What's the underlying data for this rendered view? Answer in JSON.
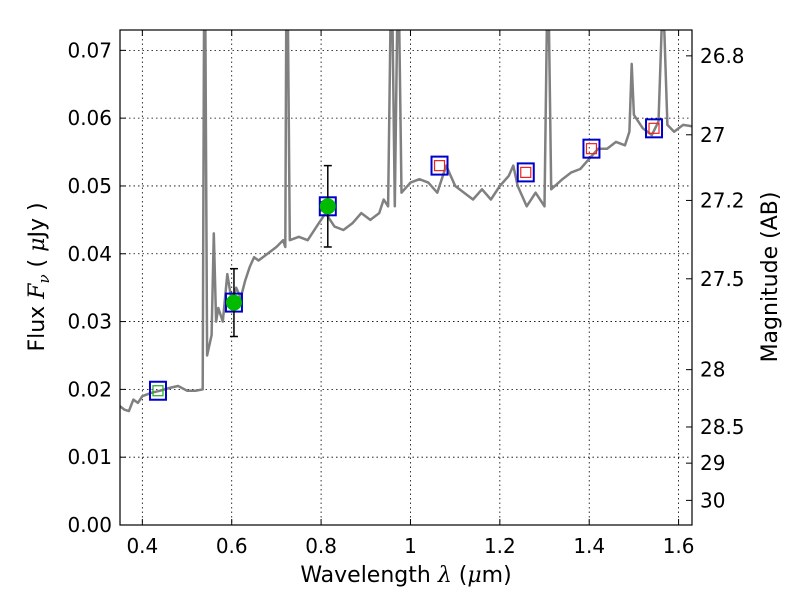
{
  "chart_data": {
    "type": "scatter",
    "title": "",
    "xlabel": {
      "prefix": "Wavelength ",
      "symbol": "λ",
      "suffix_open": " (",
      "unit_mu": "μ",
      "unit_rest": "m)"
    },
    "ylabel": {
      "prefix": "Flux ",
      "symbol": "F",
      "sub": "ν",
      "suffix_open": " ( ",
      "unit_mu": "μ",
      "unit_rest": "Jy )"
    },
    "y2label": "Magnitude (AB)",
    "xlim": [
      0.35,
      1.63
    ],
    "ylim": [
      0.0,
      0.073
    ],
    "grid": true,
    "x_ticks": [
      {
        "v": 0.4,
        "label": "0.4"
      },
      {
        "v": 0.6,
        "label": "0.6"
      },
      {
        "v": 0.8,
        "label": "0.8"
      },
      {
        "v": 1.0,
        "label": "1"
      },
      {
        "v": 1.2,
        "label": "1.2"
      },
      {
        "v": 1.4,
        "label": "1.4"
      },
      {
        "v": 1.6,
        "label": "1.6"
      }
    ],
    "y_ticks": [
      {
        "v": 0.0,
        "label": "0.00"
      },
      {
        "v": 0.01,
        "label": "0.01"
      },
      {
        "v": 0.02,
        "label": "0.02"
      },
      {
        "v": 0.03,
        "label": "0.03"
      },
      {
        "v": 0.04,
        "label": "0.04"
      },
      {
        "v": 0.05,
        "label": "0.05"
      },
      {
        "v": 0.06,
        "label": "0.06"
      },
      {
        "v": 0.07,
        "label": "0.07"
      }
    ],
    "mag_ticks": [
      {
        "v": 26.8,
        "label": "26.8"
      },
      {
        "v": 27,
        "label": "27"
      },
      {
        "v": 27.2,
        "label": "27.2"
      },
      {
        "v": 27.5,
        "label": "27.5"
      },
      {
        "v": 28,
        "label": "28"
      },
      {
        "v": 28.5,
        "label": "28.5"
      },
      {
        "v": 29,
        "label": "29"
      },
      {
        "v": 30,
        "label": "30"
      }
    ],
    "colors": {
      "spectrum": "#808080",
      "observed": "#00bb00",
      "model_box": "#0000cc",
      "model_red": "#ee2222",
      "model_green": "#22aa22",
      "errorbar": "#000000"
    },
    "spectrum": [
      [
        0.35,
        0.0175
      ],
      [
        0.36,
        0.017
      ],
      [
        0.37,
        0.0168
      ],
      [
        0.38,
        0.0185
      ],
      [
        0.39,
        0.018
      ],
      [
        0.4,
        0.019
      ],
      [
        0.42,
        0.0195
      ],
      [
        0.44,
        0.0198
      ],
      [
        0.46,
        0.0202
      ],
      [
        0.48,
        0.0205
      ],
      [
        0.5,
        0.0198
      ],
      [
        0.52,
        0.0198
      ],
      [
        0.535,
        0.02
      ],
      [
        0.538,
        0.073
      ],
      [
        0.541,
        0.073
      ],
      [
        0.545,
        0.025
      ],
      [
        0.555,
        0.028
      ],
      [
        0.56,
        0.043
      ],
      [
        0.565,
        0.03
      ],
      [
        0.57,
        0.032
      ],
      [
        0.58,
        0.03
      ],
      [
        0.59,
        0.037
      ],
      [
        0.6,
        0.033
      ],
      [
        0.61,
        0.035
      ],
      [
        0.62,
        0.0335
      ],
      [
        0.63,
        0.036
      ],
      [
        0.64,
        0.038
      ],
      [
        0.65,
        0.0395
      ],
      [
        0.66,
        0.039
      ],
      [
        0.68,
        0.04
      ],
      [
        0.7,
        0.041
      ],
      [
        0.715,
        0.042
      ],
      [
        0.72,
        0.041
      ],
      [
        0.722,
        0.073
      ],
      [
        0.726,
        0.073
      ],
      [
        0.73,
        0.042
      ],
      [
        0.75,
        0.0425
      ],
      [
        0.77,
        0.042
      ],
      [
        0.79,
        0.044
      ],
      [
        0.81,
        0.046
      ],
      [
        0.83,
        0.044
      ],
      [
        0.85,
        0.0435
      ],
      [
        0.87,
        0.0445
      ],
      [
        0.89,
        0.046
      ],
      [
        0.91,
        0.045
      ],
      [
        0.93,
        0.046
      ],
      [
        0.94,
        0.048
      ],
      [
        0.95,
        0.047
      ],
      [
        0.955,
        0.073
      ],
      [
        0.96,
        0.073
      ],
      [
        0.965,
        0.047
      ],
      [
        0.97,
        0.073
      ],
      [
        0.975,
        0.073
      ],
      [
        0.98,
        0.049
      ],
      [
        1.0,
        0.0505
      ],
      [
        1.02,
        0.051
      ],
      [
        1.04,
        0.0505
      ],
      [
        1.06,
        0.049
      ],
      [
        1.08,
        0.053
      ],
      [
        1.1,
        0.05
      ],
      [
        1.12,
        0.049
      ],
      [
        1.14,
        0.048
      ],
      [
        1.16,
        0.0495
      ],
      [
        1.18,
        0.048
      ],
      [
        1.2,
        0.05
      ],
      [
        1.22,
        0.0515
      ],
      [
        1.23,
        0.053
      ],
      [
        1.24,
        0.05
      ],
      [
        1.26,
        0.047
      ],
      [
        1.28,
        0.049
      ],
      [
        1.3,
        0.047
      ],
      [
        1.305,
        0.073
      ],
      [
        1.31,
        0.073
      ],
      [
        1.315,
        0.0495
      ],
      [
        1.34,
        0.051
      ],
      [
        1.36,
        0.052
      ],
      [
        1.38,
        0.0525
      ],
      [
        1.4,
        0.054
      ],
      [
        1.42,
        0.0555
      ],
      [
        1.44,
        0.0555
      ],
      [
        1.46,
        0.0565
      ],
      [
        1.48,
        0.056
      ],
      [
        1.49,
        0.058
      ],
      [
        1.495,
        0.068
      ],
      [
        1.5,
        0.0605
      ],
      [
        1.52,
        0.0585
      ],
      [
        1.54,
        0.0575
      ],
      [
        1.555,
        0.0595
      ],
      [
        1.562,
        0.073
      ],
      [
        1.568,
        0.073
      ],
      [
        1.575,
        0.059
      ],
      [
        1.59,
        0.058
      ],
      [
        1.61,
        0.059
      ],
      [
        1.63,
        0.0588
      ]
    ],
    "model_points": [
      {
        "x": 0.435,
        "y": 0.0198,
        "inner": "green"
      },
      {
        "x": 0.605,
        "y": 0.0328,
        "inner": "green"
      },
      {
        "x": 0.815,
        "y": 0.047,
        "inner": "green"
      },
      {
        "x": 1.065,
        "y": 0.053,
        "inner": "red"
      },
      {
        "x": 1.258,
        "y": 0.052,
        "inner": "red"
      },
      {
        "x": 1.405,
        "y": 0.0555,
        "inner": "red"
      },
      {
        "x": 1.545,
        "y": 0.0585,
        "inner": "red"
      }
    ],
    "observed_points": [
      {
        "x": 0.605,
        "y": 0.0328,
        "yerr": 0.005
      },
      {
        "x": 0.815,
        "y": 0.047,
        "yerr": 0.006
      }
    ]
  }
}
